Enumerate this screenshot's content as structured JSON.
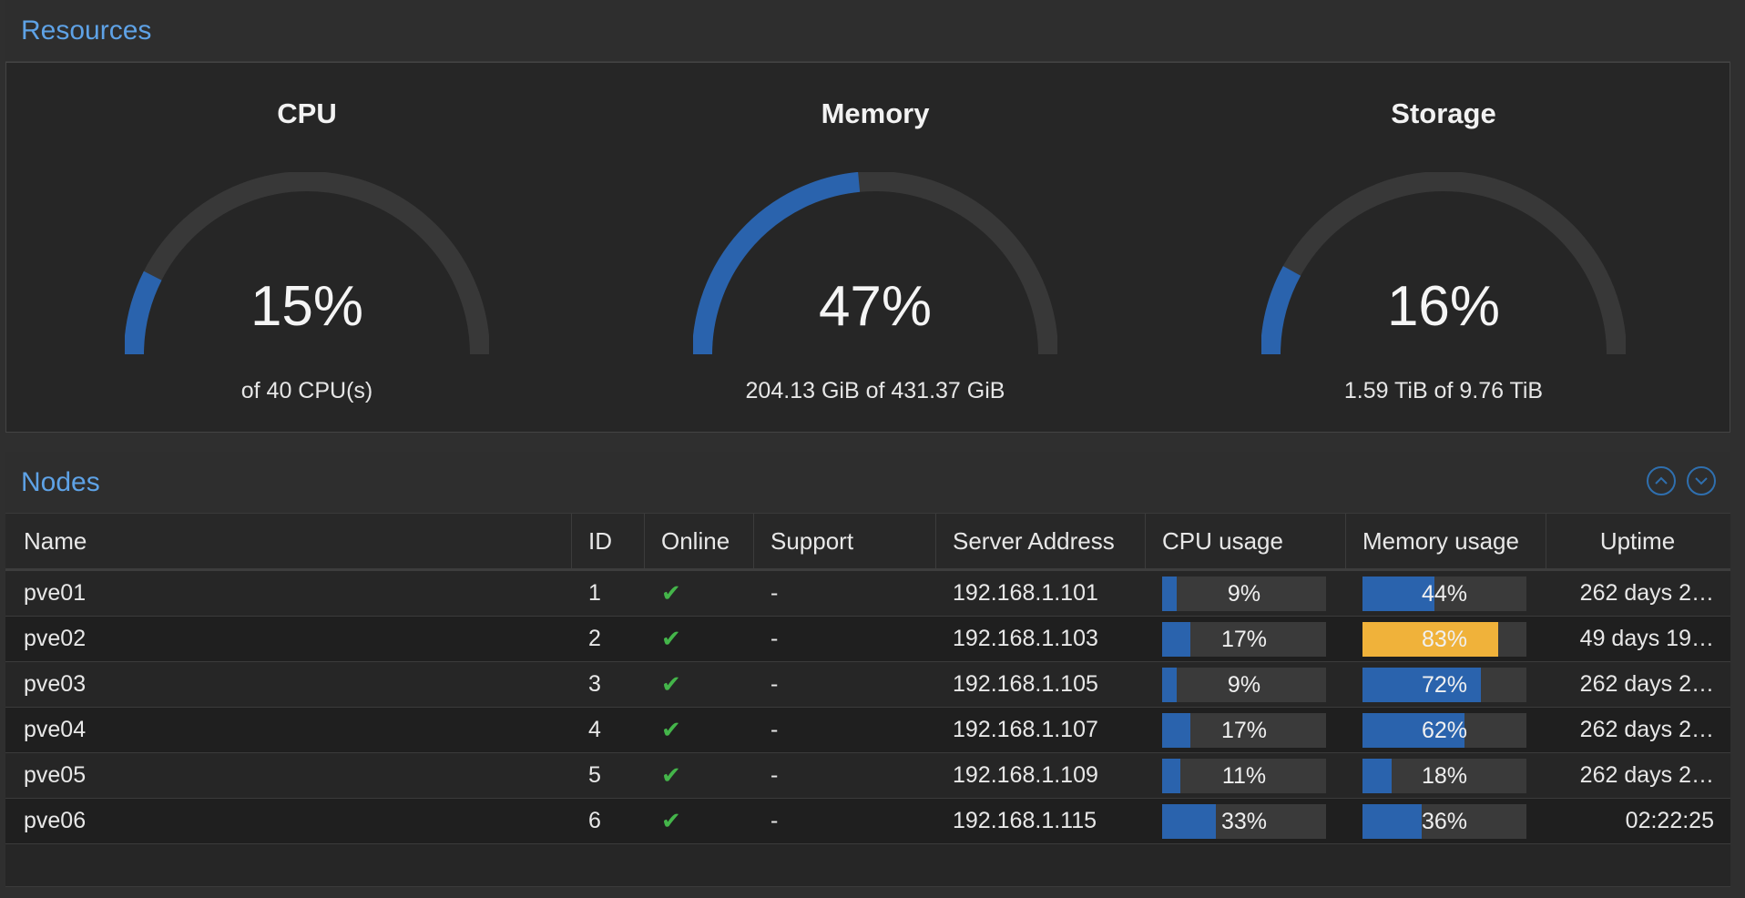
{
  "resources": {
    "title": "Resources",
    "gauges": [
      {
        "title": "CPU",
        "value_text": "15%",
        "fraction": 0.15,
        "sub": "of 40 CPU(s)"
      },
      {
        "title": "Memory",
        "value_text": "47%",
        "fraction": 0.47,
        "sub": "204.13 GiB of 431.37 GiB"
      },
      {
        "title": "Storage",
        "value_text": "16%",
        "fraction": 0.16,
        "sub": "1.59 TiB of 9.76 TiB"
      }
    ]
  },
  "nodes": {
    "title": "Nodes",
    "columns": {
      "name": "Name",
      "id": "ID",
      "online": "Online",
      "support": "Support",
      "address": "Server Address",
      "cpu": "CPU usage",
      "memory": "Memory usage",
      "uptime": "Uptime"
    },
    "rows": [
      {
        "name": "pve01",
        "id": "1",
        "online": "✔",
        "support": "-",
        "address": "192.168.1.101",
        "cpu_text": "9%",
        "cpu": 0.09,
        "mem_text": "44%",
        "mem": 0.44,
        "uptime": "262 days 2…"
      },
      {
        "name": "pve02",
        "id": "2",
        "online": "✔",
        "support": "-",
        "address": "192.168.1.103",
        "cpu_text": "17%",
        "cpu": 0.17,
        "mem_text": "83%",
        "mem": 0.83,
        "uptime": "49 days 19…"
      },
      {
        "name": "pve03",
        "id": "3",
        "online": "✔",
        "support": "-",
        "address": "192.168.1.105",
        "cpu_text": "9%",
        "cpu": 0.09,
        "mem_text": "72%",
        "mem": 0.72,
        "uptime": "262 days 2…"
      },
      {
        "name": "pve04",
        "id": "4",
        "online": "✔",
        "support": "-",
        "address": "192.168.1.107",
        "cpu_text": "17%",
        "cpu": 0.17,
        "mem_text": "62%",
        "mem": 0.62,
        "uptime": "262 days 2…"
      },
      {
        "name": "pve05",
        "id": "5",
        "online": "✔",
        "support": "-",
        "address": "192.168.1.109",
        "cpu_text": "11%",
        "cpu": 0.11,
        "mem_text": "18%",
        "mem": 0.18,
        "uptime": "262 days 2…"
      },
      {
        "name": "pve06",
        "id": "6",
        "online": "✔",
        "support": "-",
        "address": "192.168.1.115",
        "cpu_text": "33%",
        "cpu": 0.33,
        "mem_text": "36%",
        "mem": 0.36,
        "uptime": "02:22:25"
      }
    ]
  },
  "colors": {
    "accent": "#5ea2e6",
    "bar_normal": "#2a63ad",
    "bar_warning": "#f0b23a",
    "gauge_track": "#383838",
    "online": "#44b54a"
  },
  "icons": {
    "collapse": "chevron-up-circle-icon",
    "expand": "chevron-down-circle-icon",
    "online": "check-icon"
  }
}
